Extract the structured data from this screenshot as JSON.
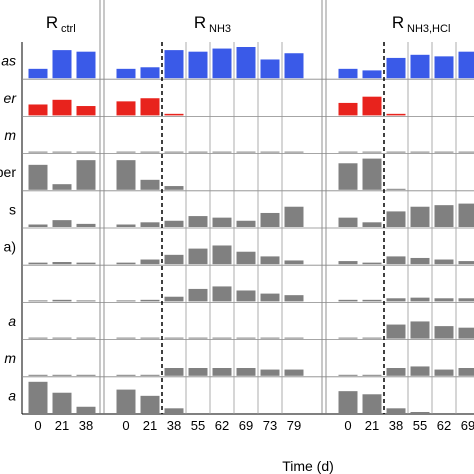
{
  "chart_data": {
    "type": "bar",
    "xlabel": "Time (d)",
    "colors": {
      "top": "#3a5ae8",
      "second": "#e8231d",
      "gray": "#808080"
    },
    "panels": [
      {
        "title": "R",
        "sub": "ctrl",
        "days": [
          "0",
          "21",
          "38"
        ],
        "divider_after_index": null
      },
      {
        "title": "R",
        "sub": "NH3",
        "days": [
          "0",
          "21",
          "38",
          "55",
          "62",
          "69",
          "73",
          "79"
        ],
        "divider_after_index": 1
      },
      {
        "title": "R",
        "sub": "NH3,HCl",
        "days": [
          "0",
          "21",
          "38",
          "55",
          "62",
          "69"
        ],
        "divider_after_index": 1
      }
    ],
    "rows": [
      {
        "label": "as",
        "italic": true,
        "color": "top",
        "values": [
          [
            0.3,
            0.9,
            0.85
          ],
          [
            0.3,
            0.35,
            0.9,
            0.85,
            0.95,
            1.0,
            0.6,
            0.8
          ],
          [
            0.3,
            0.25,
            0.65,
            0.75,
            0.7,
            0.85
          ]
        ]
      },
      {
        "label": "er",
        "italic": true,
        "color": "second",
        "values": [
          [
            0.35,
            0.5,
            0.3
          ],
          [
            0.45,
            0.55,
            0.05,
            0,
            0,
            0,
            0,
            0
          ],
          [
            0.4,
            0.6,
            0.05,
            0,
            0,
            0
          ]
        ]
      },
      {
        "label": "m",
        "italic": true,
        "color": "gray",
        "values": [
          [
            0.02,
            0.02,
            0.02
          ],
          [
            0.02,
            0.02,
            0.02,
            0.02,
            0.02,
            0.02,
            0.02,
            0.02
          ],
          [
            0.02,
            0.02,
            0.02,
            0.02,
            0.02,
            0.02
          ]
        ]
      },
      {
        "label": "per",
        "italic": false,
        "color": "gray",
        "values": [
          [
            0.8,
            0.18,
            0.95
          ],
          [
            0.95,
            0.32,
            0.12,
            0,
            0,
            0,
            0,
            0
          ],
          [
            0.85,
            1.0,
            0.03,
            0,
            0,
            0
          ]
        ]
      },
      {
        "label": "s",
        "italic": false,
        "color": "gray",
        "values": [
          [
            0.08,
            0.22,
            0.1
          ],
          [
            0.08,
            0.15,
            0.2,
            0.35,
            0.3,
            0.2,
            0.45,
            0.65
          ],
          [
            0.3,
            0.15,
            0.5,
            0.65,
            0.7,
            0.75
          ]
        ]
      },
      {
        "label": "a)",
        "italic": false,
        "color": "gray",
        "values": [
          [
            0.05,
            0.07,
            0.05
          ],
          [
            0.05,
            0.15,
            0.3,
            0.5,
            0.6,
            0.4,
            0.25,
            0.12
          ],
          [
            0.1,
            0.05,
            0.25,
            0.2,
            0.15,
            0.1
          ]
        ]
      },
      {
        "label": "",
        "italic": false,
        "color": "gray",
        "values": [
          [
            0.03,
            0.05,
            0.03
          ],
          [
            0.03,
            0.05,
            0.15,
            0.4,
            0.48,
            0.35,
            0.25,
            0.2
          ],
          [
            0.05,
            0.05,
            0.1,
            0.12,
            0.1,
            0.1
          ]
        ]
      },
      {
        "label": "a",
        "italic": true,
        "color": "gray",
        "values": [
          [
            0.02,
            0.02,
            0.02
          ],
          [
            0.02,
            0.02,
            0.02,
            0.02,
            0.02,
            0.02,
            0.02,
            0.02
          ],
          [
            0.02,
            0.02,
            0.45,
            0.55,
            0.4,
            0.35
          ]
        ]
      },
      {
        "label": "m",
        "italic": true,
        "color": "gray",
        "values": [
          [
            0.03,
            0.03,
            0.03
          ],
          [
            0.03,
            0.03,
            0.25,
            0.25,
            0.25,
            0.25,
            0.2,
            0.2
          ],
          [
            0.03,
            0.03,
            0.25,
            0.3,
            0.2,
            0.25
          ]
        ]
      },
      {
        "label": "a",
        "italic": true,
        "color": "gray",
        "values": [
          [
            1.0,
            0.65,
            0.2
          ],
          [
            0.75,
            0.55,
            0.15,
            0,
            0,
            0,
            0,
            0
          ],
          [
            0.7,
            0.6,
            0.15,
            0.03,
            0,
            0
          ]
        ]
      }
    ]
  }
}
